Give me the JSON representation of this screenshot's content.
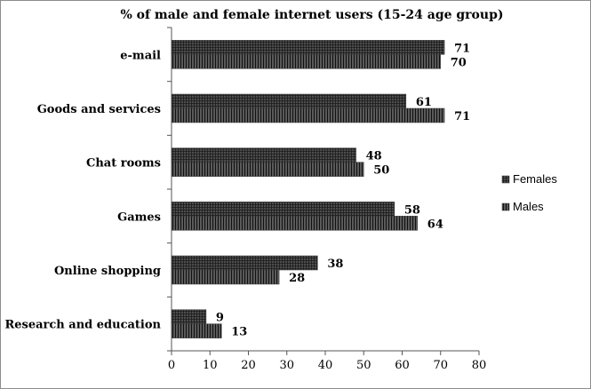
{
  "chart_data": {
    "type": "bar",
    "orientation": "horizontal",
    "title": "% of male and female internet users (15-24 age group)",
    "categories": [
      "e-mail",
      "Goods and services",
      "Chat rooms",
      "Games",
      "Online shopping",
      "Research and education"
    ],
    "series": [
      {
        "name": "Females",
        "values": [
          71,
          61,
          48,
          58,
          38,
          9
        ],
        "pattern": "crosshatch"
      },
      {
        "name": "Males",
        "values": [
          70,
          71,
          50,
          64,
          28,
          13
        ],
        "pattern": "vertical-lines"
      }
    ],
    "xlim": [
      0,
      80
    ],
    "xticks": [
      "0",
      "10",
      "20",
      "30",
      "40",
      "50",
      "60",
      "70",
      "80"
    ],
    "xlabel": "",
    "ylabel": "",
    "grid": false,
    "legend_position": "right",
    "bar_color": "#4d4d4d",
    "hatch_color": "#1a1a1a"
  }
}
